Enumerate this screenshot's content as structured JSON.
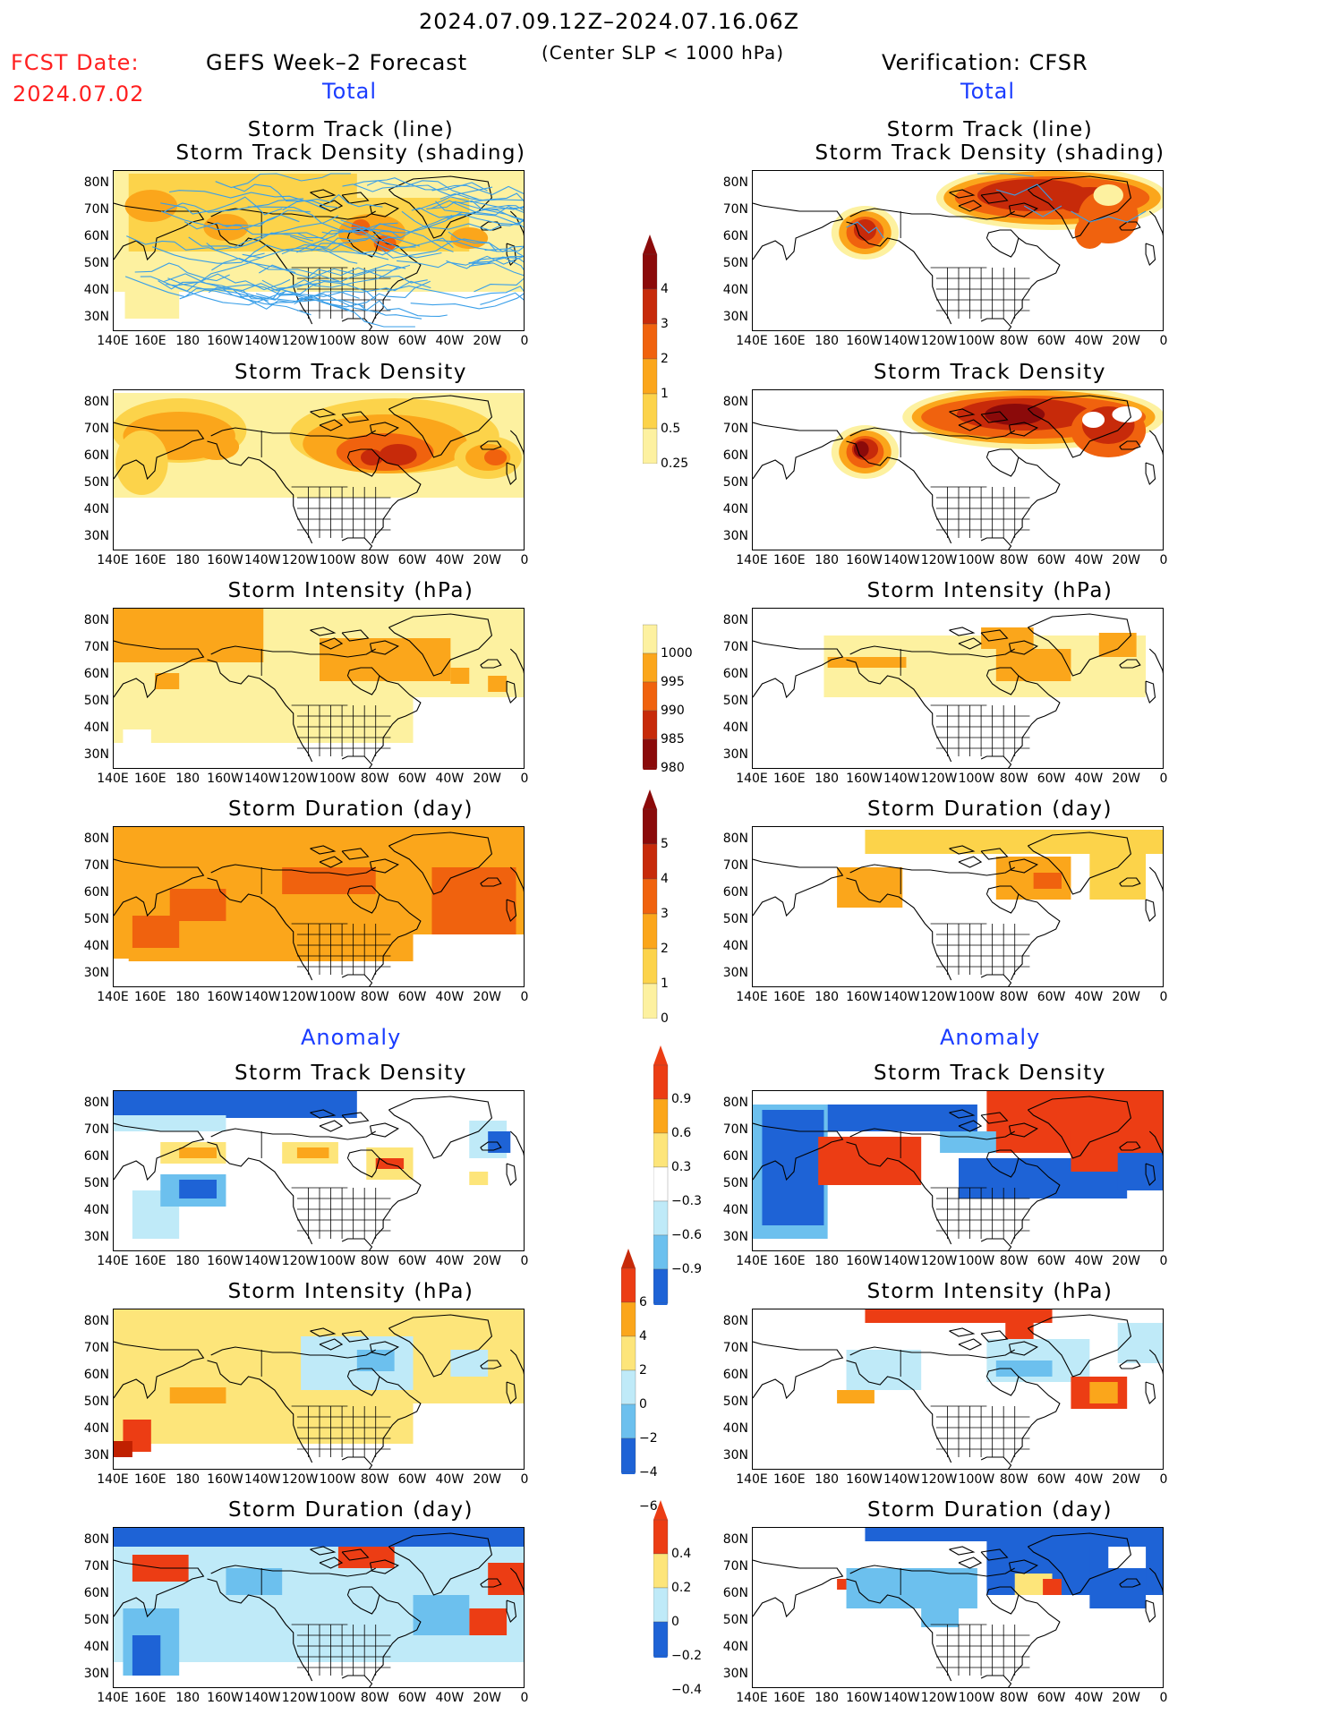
{
  "header": {
    "period": "2024.07.09.12Z–2024.07.16.06Z",
    "subtitle": "(Center SLP < 1000 hPa)",
    "fcst_label": "FCST Date:",
    "fcst_date": "2024.07.02",
    "left_product": "GEFS Week–2 Forecast",
    "right_product": "Verification: CFSR",
    "total_label": "Total",
    "anomaly_label": "Anomaly"
  },
  "panel_titles": {
    "track_line": "Storm Track (line)",
    "track_shading": "Storm Track Density (shading)",
    "density": "Storm Track Density",
    "intensity": "Storm Intensity (hPa)",
    "duration": "Storm Duration (day)"
  },
  "axes": {
    "lat_labels": [
      "80N",
      "70N",
      "60N",
      "50N",
      "40N",
      "30N"
    ],
    "lon_labels": [
      "140E",
      "160E",
      "180",
      "160W",
      "140W",
      "120W",
      "100W",
      "80W",
      "60W",
      "40W",
      "20W",
      "0"
    ]
  },
  "colorbars": {
    "density_total": {
      "labels": [
        "4",
        "3",
        "2",
        "1",
        "0.5",
        "0.25"
      ],
      "colors": [
        "#8b0a0a",
        "#c72a0a",
        "#f0620e",
        "#fba61b",
        "#fcd34a",
        "#fdf1a0"
      ]
    },
    "intensity_total": {
      "labels": [
        "1000",
        "995",
        "990",
        "985",
        "980"
      ],
      "colors": [
        "#fdf1a0",
        "#fba61b",
        "#f0620e",
        "#c72a0a",
        "#8b0a0a"
      ]
    },
    "duration_total": {
      "labels": [
        "5",
        "4",
        "3",
        "2",
        "1",
        "0"
      ],
      "colors": [
        "#8b0a0a",
        "#c72a0a",
        "#f0620e",
        "#fba61b",
        "#fcd34a",
        "#fdf1a0"
      ]
    },
    "density_anom": {
      "labels": [
        "0.9",
        "0.6",
        "0.3",
        "−0.3",
        "−0.6",
        "−0.9"
      ],
      "colors": [
        "#ec3d14",
        "#fba61b",
        "#fde57a",
        "#ffffff",
        "#bfeaf8",
        "#6cc0ee",
        "#1e63d6"
      ]
    },
    "intensity_anom": {
      "labels": [
        "6",
        "4",
        "2",
        "0",
        "−2",
        "−4",
        "−6"
      ],
      "colors": [
        "#ec3d14",
        "#fba61b",
        "#fde57a",
        "#bfeaf8",
        "#6cc0ee",
        "#1e63d6"
      ]
    },
    "duration_anom": {
      "labels": [
        "0.4",
        "0.2",
        "0",
        "−0.2",
        "−0.4"
      ],
      "colors": [
        "#ec3d14",
        "#fde57a",
        "#bfeaf8",
        "#1e63d6"
      ]
    }
  },
  "colors": {
    "track_line": "#3a9fe8",
    "pale": "#fdf1a0",
    "light_orange": "#fcd34a",
    "orange": "#fba61b",
    "dark_orange": "#f0620e",
    "red": "#c72a0a",
    "dark_red": "#8b0a0a",
    "anom_red": "#ec3d14",
    "anom_orange": "#fba61b",
    "anom_yellow": "#fde57a",
    "anom_lightblue": "#bfeaf8",
    "anom_midblue": "#6cc0ee",
    "anom_blue": "#1e63d6"
  }
}
